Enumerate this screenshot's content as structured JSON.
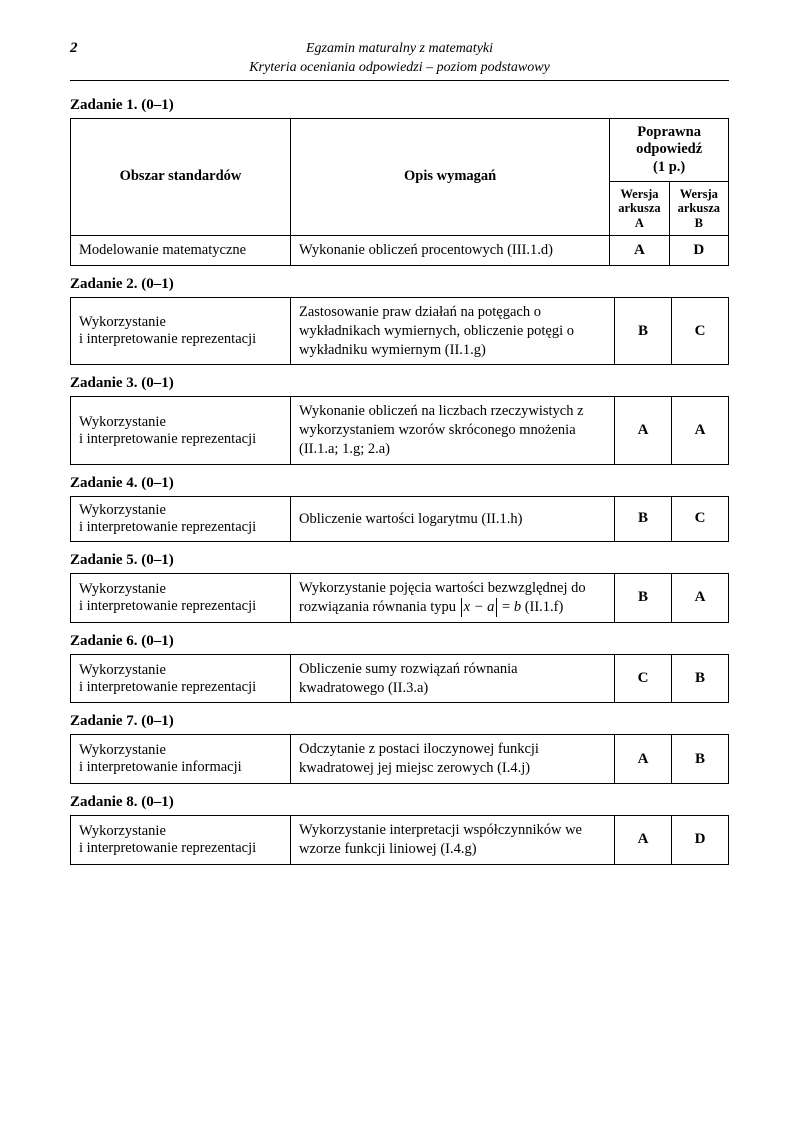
{
  "page_number": "2",
  "header_line1": "Egzamin maturalny z matematyki",
  "header_line2": "Kryteria oceniania odpowiedzi – poziom podstawowy",
  "columns": {
    "obszar": "Obszar standardów",
    "opis": "Opis wymagań",
    "ans_header_top": "Poprawna odpowiedź (1 p.)",
    "wersja_a": "Wersja arkusza A",
    "wersja_b": "Wersja arkusza B"
  },
  "tasks": [
    {
      "title": "Zadanie 1. (0–1)",
      "obszar": "Modelowanie matematyczne",
      "opis": "Wykonanie obliczeń procentowych (III.1.d)",
      "a": "A",
      "b": "D",
      "show_header": true
    },
    {
      "title": "Zadanie 2. (0–1)",
      "obszar": "Wykorzystanie\ni interpretowanie reprezentacji",
      "opis": "Zastosowanie praw działań na potęgach o wykładnikach wymiernych, obliczenie potęgi o wykładniku wymiernym (II.1.g)",
      "a": "B",
      "b": "C"
    },
    {
      "title": "Zadanie 3. (0–1)",
      "obszar": "Wykorzystanie\ni interpretowanie reprezentacji",
      "opis": "Wykonanie obliczeń na liczbach rzeczywistych z wykorzystaniem wzorów skróconego mnożenia (II.1.a; 1.g; 2.a)",
      "a": "A",
      "b": "A"
    },
    {
      "title": "Zadanie 4. (0–1)",
      "obszar": "Wykorzystanie\ni interpretowanie reprezentacji",
      "opis": "Obliczenie wartości logarytmu (II.1.h)",
      "a": "B",
      "b": "C"
    },
    {
      "title": "Zadanie 5. (0–1)",
      "obszar": "Wykorzystanie\ni interpretowanie reprezentacji",
      "opis_prefix": "Wykorzystanie pojęcia wartości bezwzględnej do rozwiązania równania typu ",
      "math_lhs": "x − a",
      "math_eq": " = ",
      "math_rhs": "b",
      "opis_suffix": "  (II.1.f)",
      "a": "B",
      "b": "A",
      "has_math": true
    },
    {
      "title": "Zadanie 6. (0–1)",
      "obszar": "Wykorzystanie\ni interpretowanie reprezentacji",
      "opis": "Obliczenie sumy rozwiązań równania kwadratowego (II.3.a)",
      "a": "C",
      "b": "B"
    },
    {
      "title": "Zadanie 7. (0–1)",
      "obszar": "Wykorzystanie\ni interpretowanie informacji",
      "opis": "Odczytanie z postaci iloczynowej funkcji kwadratowej jej miejsc zerowych (I.4.j)",
      "a": "A",
      "b": "B"
    },
    {
      "title": "Zadanie 8. (0–1)",
      "obszar": "Wykorzystanie\ni interpretowanie reprezentacji",
      "opis": "Wykorzystanie interpretacji współczynników we wzorze funkcji liniowej (I.4.g)",
      "a": "A",
      "b": "D"
    }
  ]
}
